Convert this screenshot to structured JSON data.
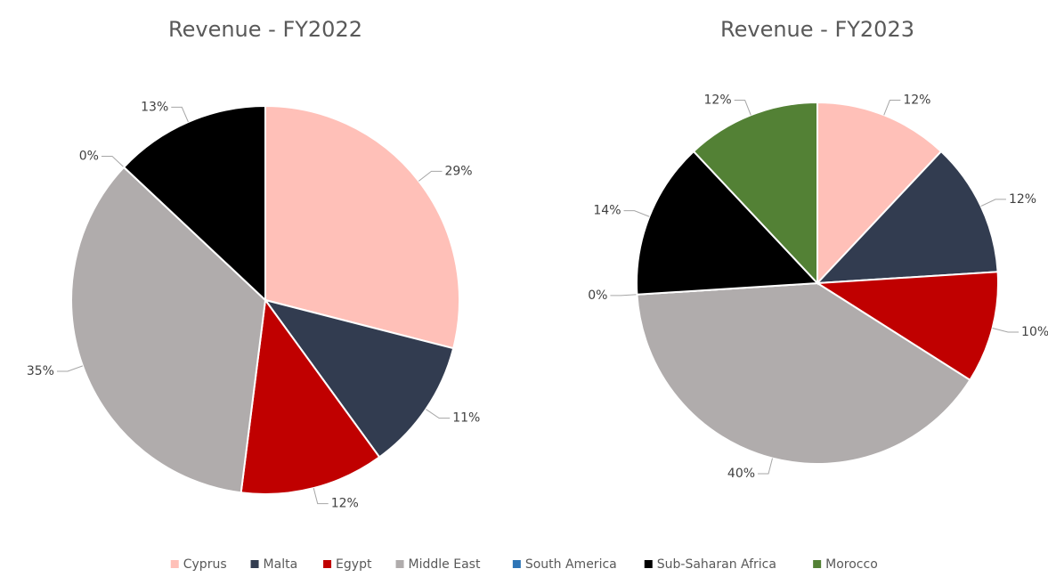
{
  "chart_data": [
    {
      "type": "pie",
      "title": "Revenue - FY2022",
      "values": [
        29,
        11,
        12,
        35,
        0,
        13
      ],
      "value_labels": [
        "29%",
        "11%",
        "12%",
        "35%",
        "0%",
        "13%"
      ]
    },
    {
      "type": "pie",
      "title": "Revenue - FY2023",
      "values": [
        12,
        12,
        10,
        40,
        0,
        14,
        12
      ],
      "value_labels": [
        "12%",
        "12%",
        "10%",
        "40%",
        "0%",
        "14%",
        "12%"
      ]
    }
  ],
  "legend": {
    "categories": [
      "Cyprus",
      "Malta",
      "Egypt",
      "Middle East",
      "South America",
      "Sub-Saharan Africa",
      "Morocco"
    ],
    "colors": [
      "#ffc0b8",
      "#323c50",
      "#c00000",
      "#b0acac",
      "#2e75b6",
      "#000000",
      "#538135"
    ]
  }
}
